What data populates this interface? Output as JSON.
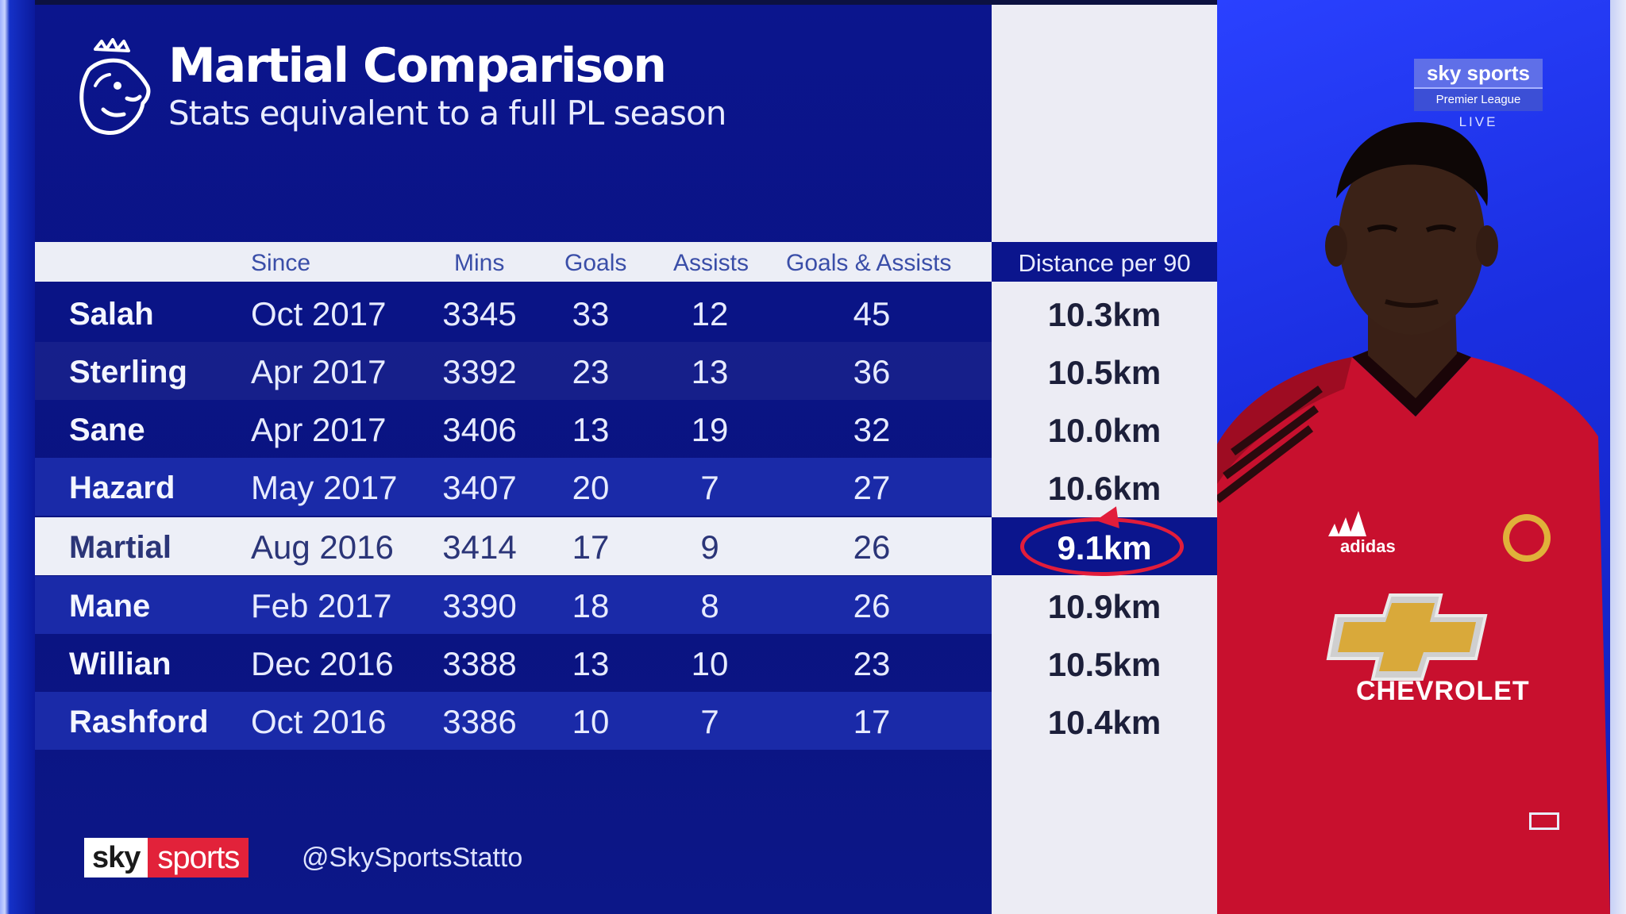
{
  "title": "Martial Comparison",
  "subtitle": "Stats equivalent to a full PL season",
  "columns": {
    "since": "Since",
    "mins": "Mins",
    "goals": "Goals",
    "assists": "Assists",
    "goals_assists": "Goals & Assists",
    "distance": "Distance per 90"
  },
  "rows": [
    {
      "name": "Salah",
      "since": "Oct 2017",
      "mins": "3345",
      "goals": "33",
      "assists": "12",
      "ga": "45",
      "distance": "10.3km"
    },
    {
      "name": "Sterling",
      "since": "Apr 2017",
      "mins": "3392",
      "goals": "23",
      "assists": "13",
      "ga": "36",
      "distance": "10.5km"
    },
    {
      "name": "Sane",
      "since": "Apr 2017",
      "mins": "3406",
      "goals": "13",
      "assists": "19",
      "ga": "32",
      "distance": "10.0km"
    },
    {
      "name": "Hazard",
      "since": "May 2017",
      "mins": "3407",
      "goals": "20",
      "assists": "7",
      "ga": "27",
      "distance": "10.6km"
    },
    {
      "name": "Martial",
      "since": "Aug 2016",
      "mins": "3414",
      "goals": "17",
      "assists": "9",
      "ga": "26",
      "distance": "9.1km"
    },
    {
      "name": "Mane",
      "since": "Feb 2017",
      "mins": "3390",
      "goals": "18",
      "assists": "8",
      "ga": "26",
      "distance": "10.9km"
    },
    {
      "name": "Willian",
      "since": "Dec 2016",
      "mins": "3388",
      "goals": "13",
      "assists": "10",
      "ga": "23",
      "distance": "10.5km"
    },
    {
      "name": "Rashford",
      "since": "Oct 2016",
      "mins": "3386",
      "goals": "10",
      "assists": "7",
      "ga": "17",
      "distance": "10.4km"
    }
  ],
  "highlight_player": "Martial",
  "footer": {
    "sky": "sky",
    "sports": "sports",
    "handle": "@SkySportsStatto"
  },
  "bug": {
    "brand": "sky sports",
    "channel": "Premier League",
    "live": "LIVE"
  },
  "kit": {
    "sponsor": "CHEVROLET",
    "brand": "adidas"
  },
  "colors": {
    "panel": "#0b158d",
    "highlight_ring": "#e21d3b",
    "sky_red": "#e2223a",
    "shirt": "#c8102e"
  }
}
